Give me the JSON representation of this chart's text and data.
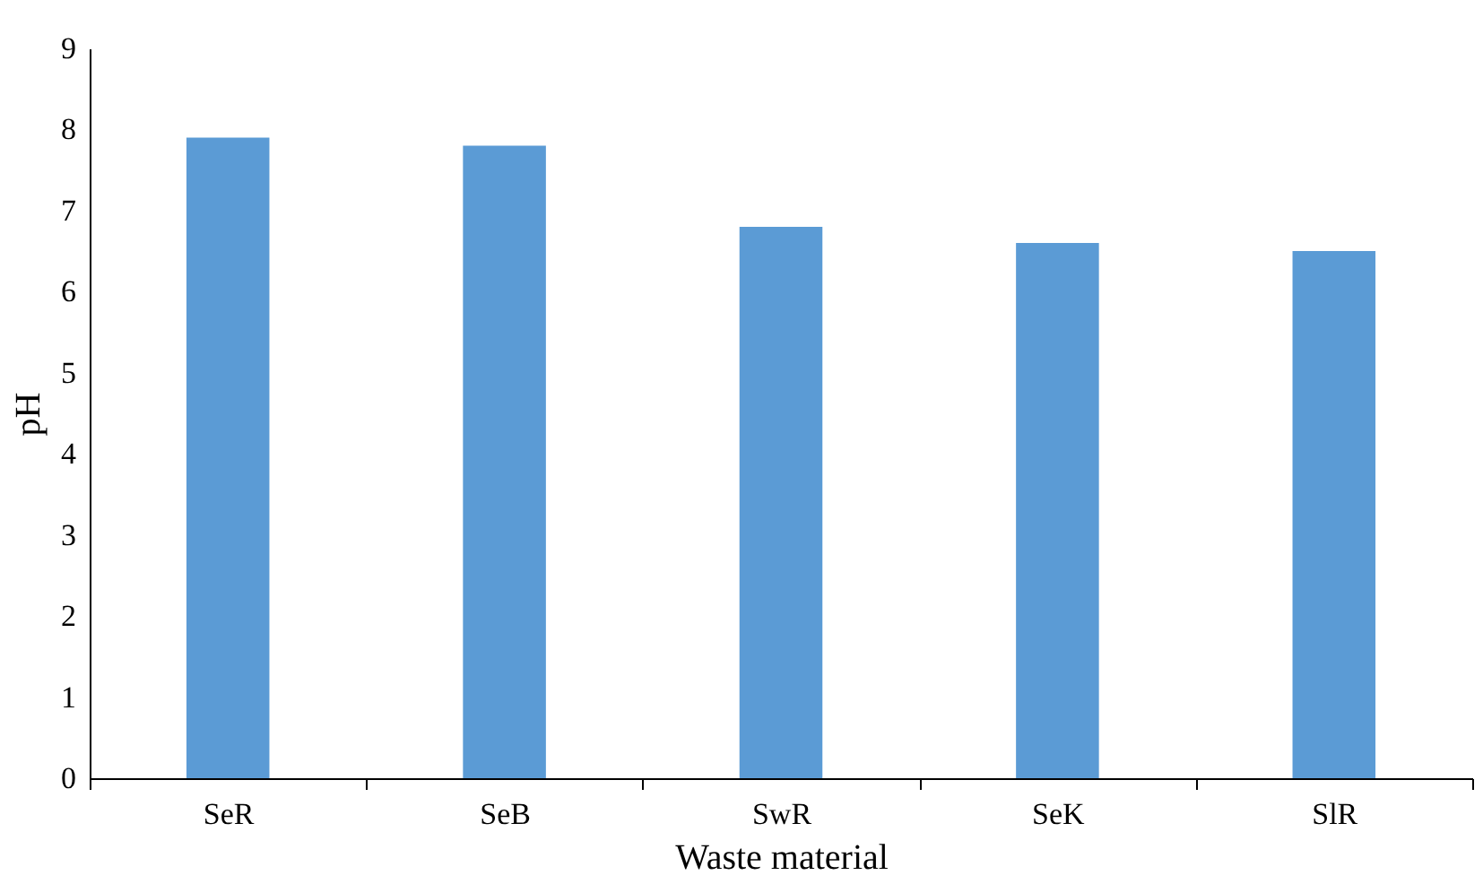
{
  "chart_data": {
    "type": "bar",
    "xlabel": "Waste material",
    "ylabel": "pH",
    "categories": [
      "SeR",
      "SeB",
      "SwR",
      "SeK",
      "SlR"
    ],
    "values": [
      7.9,
      7.8,
      6.8,
      6.6,
      6.5
    ],
    "color": "#5b9bd5",
    "ylim": [
      0,
      9
    ],
    "yticks": [
      0,
      1,
      2,
      3,
      4,
      5,
      6,
      7,
      8,
      9
    ],
    "grid": false,
    "legend": false
  }
}
